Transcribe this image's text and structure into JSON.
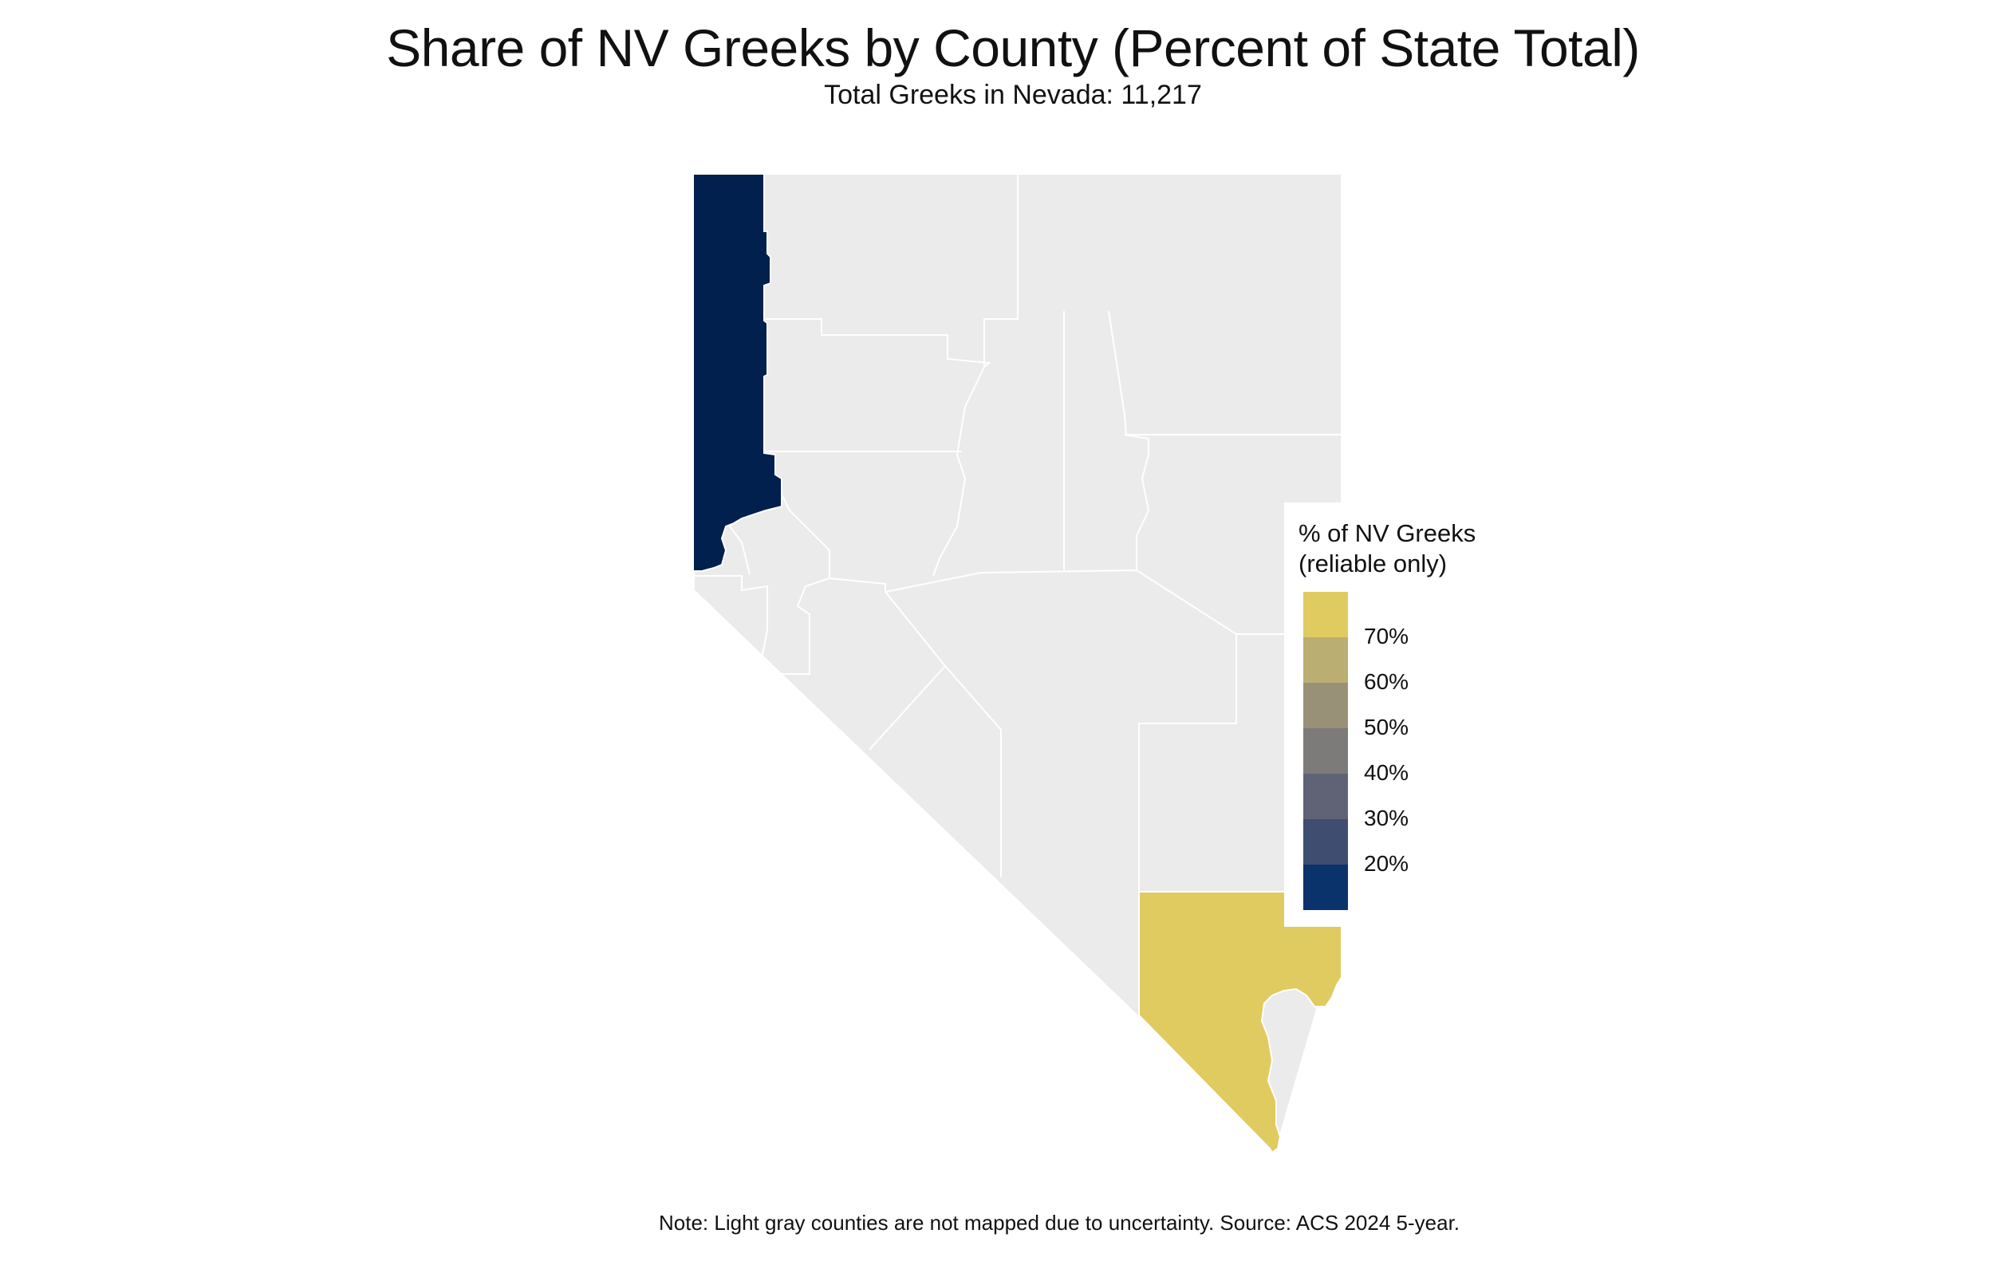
{
  "title": "Share of NV Greeks by County (Percent of State Total)",
  "subtitle": "Total Greeks in Nevada: 11,217",
  "note": "Note: Light gray counties are not mapped due to uncertainty. Source: ACS 2024 5-year.",
  "legend": {
    "title_line1": "% of NV Greeks",
    "title_line2": "(reliable only)",
    "swatches": [
      "#e0cb60",
      "#bbae72",
      "#999177",
      "#7c7b79",
      "#5f6375",
      "#3f4d70",
      "#0a336b"
    ],
    "ticks": [
      "70%",
      "60%",
      "50%",
      "40%",
      "30%",
      "20%"
    ]
  },
  "colors": {
    "unmapped": "#ebebeb",
    "washoe": "#01204d",
    "clark": "#e0cb60",
    "border": "#ffffff"
  },
  "map_regions": [
    {
      "county": "Washoe",
      "state": "mapped",
      "value_band": "below 20%"
    },
    {
      "county": "Clark",
      "state": "mapped",
      "value_band": "above 70%"
    },
    {
      "county": "Other counties",
      "state": "unmapped"
    }
  ]
}
